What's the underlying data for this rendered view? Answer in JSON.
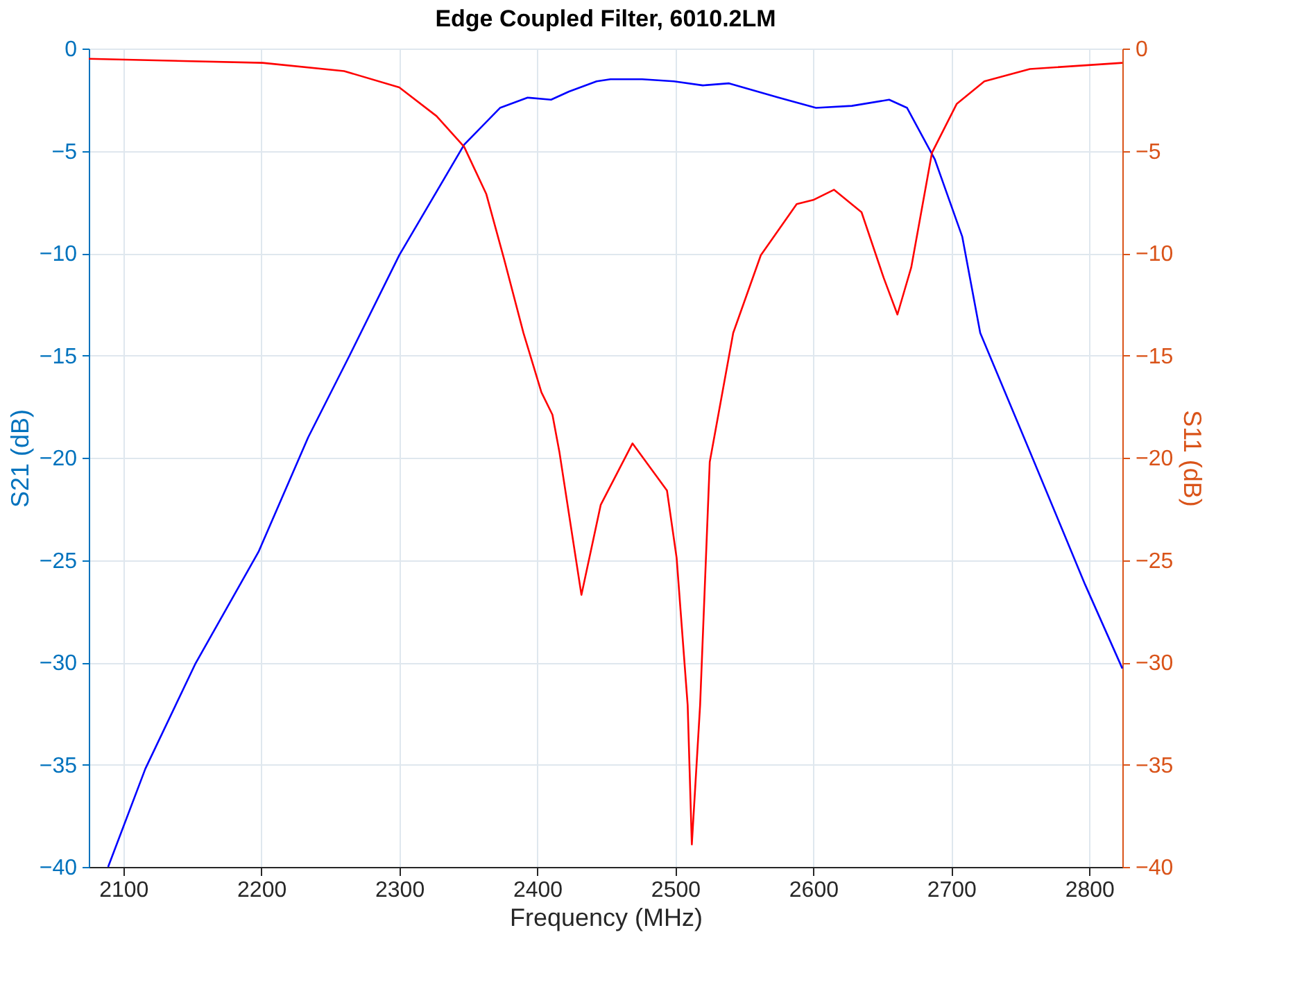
{
  "chart_data": {
    "type": "line",
    "title": "Edge Coupled Filter, 6010.2LM",
    "xlabel": "Frequency (MHz)",
    "ylabel": "S21 (dB)",
    "y2label": "S11 (dB)",
    "xlim": [
      2075,
      2824
    ],
    "xticks": [
      2100,
      2200,
      2300,
      2400,
      2500,
      2600,
      2700,
      2800
    ],
    "ylim": [
      -40,
      0
    ],
    "yticks": [
      -40,
      -35,
      -30,
      -25,
      -20,
      -15,
      -10,
      -5,
      0
    ],
    "y2lim": [
      -40,
      0
    ],
    "y2ticks": [
      -40,
      -35,
      -30,
      -25,
      -20,
      -15,
      -10,
      -5,
      0
    ],
    "grid": true,
    "line_style": "solid",
    "marker": "none",
    "series": [
      {
        "color": "#0000ff",
        "axis": "y",
        "x": [
          2089,
          2116,
          2152,
          2198,
          2234,
          2264,
          2300,
          2347,
          2373,
          2393,
          2410,
          2423,
          2443,
          2453,
          2476,
          2499,
          2520,
          2539,
          2575,
          2602,
          2628,
          2655,
          2668,
          2688,
          2708,
          2721,
          2757,
          2797,
          2824
        ],
        "values": [
          -40,
          -35.2,
          -30.1,
          -24.6,
          -19.0,
          -15.0,
          -10.1,
          -4.7,
          -2.9,
          -2.4,
          -2.5,
          -2.1,
          -1.6,
          -1.5,
          -1.5,
          -1.6,
          -1.8,
          -1.7,
          -2.4,
          -2.9,
          -2.8,
          -2.5,
          -2.9,
          -5.4,
          -9.2,
          -13.9,
          -19.7,
          -26.2,
          -30.3
        ]
      },
      {
        "color": "#ff0000",
        "axis": "y2",
        "x": [
          2075,
          2201,
          2260,
          2300,
          2327,
          2347,
          2363,
          2376,
          2390,
          2403,
          2411,
          2416,
          2432,
          2446,
          2469,
          2494,
          2501,
          2509,
          2512,
          2518,
          2525,
          2542,
          2562,
          2588,
          2600,
          2615,
          2635,
          2651,
          2661,
          2671,
          2686,
          2704,
          2724,
          2757,
          2824
        ],
        "values": [
          -0.5,
          -0.7,
          -1.1,
          -1.9,
          -3.3,
          -4.8,
          -7.1,
          -10.3,
          -13.9,
          -16.8,
          -17.9,
          -19.7,
          -26.7,
          -22.3,
          -19.3,
          -21.6,
          -24.9,
          -32.1,
          -38.9,
          -32.1,
          -20.2,
          -13.9,
          -10.1,
          -7.6,
          -7.4,
          -6.9,
          -8.0,
          -11.2,
          -13.0,
          -10.7,
          -5.1,
          -2.7,
          -1.6,
          -1.0,
          -0.7
        ]
      }
    ]
  }
}
